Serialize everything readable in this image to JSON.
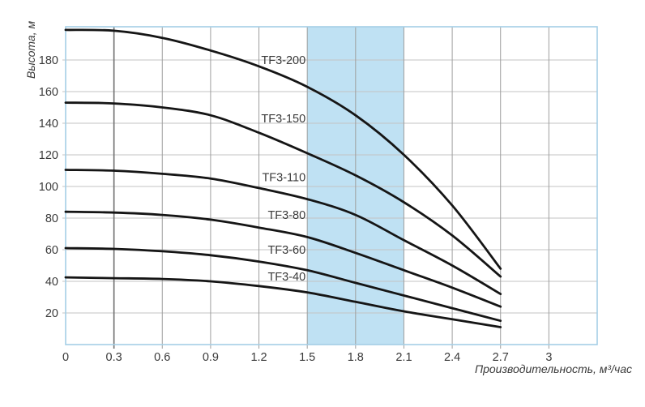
{
  "chart_data": {
    "type": "line",
    "title": "",
    "xlabel": "Производительность, м³/час",
    "ylabel": "Высота, м",
    "xlim": [
      0,
      3.3
    ],
    "ylim": [
      0,
      201
    ],
    "grid": true,
    "legend_position": "inline-labels",
    "x_ticks": [
      0,
      0.3,
      0.6,
      0.9,
      1.2,
      1.5,
      1.8,
      2.1,
      2.4,
      2.7,
      3
    ],
    "x_tick_labels": [
      "0",
      "0.3",
      "0.6",
      "0.9",
      "1.2",
      "1.5",
      "1.8",
      "2.1",
      "2.4",
      "2.7",
      "3"
    ],
    "y_ticks": [
      20,
      40,
      60,
      80,
      100,
      120,
      140,
      160,
      180
    ],
    "y_tick_labels": [
      "20",
      "40",
      "60",
      "80",
      "100",
      "120",
      "140",
      "160",
      "180"
    ],
    "emphasized_x_line": 0.3,
    "highlight_band": {
      "from": 1.5,
      "to": 2.1
    },
    "x": [
      0,
      0.3,
      0.6,
      0.9,
      1.2,
      1.5,
      1.8,
      2.1,
      2.4,
      2.7
    ],
    "series": [
      {
        "name": "TF3-200",
        "values": [
          199,
          198.5,
          194,
          186,
          176,
          163,
          145,
          120,
          88,
          48
        ],
        "label_x": 1.49,
        "label_y": 180
      },
      {
        "name": "TF3-150",
        "values": [
          153,
          152.5,
          150,
          145,
          134,
          121,
          107,
          90,
          69,
          43
        ],
        "label_x": 1.49,
        "label_y": 143
      },
      {
        "name": "TF3-110",
        "values": [
          110.5,
          110,
          108,
          105,
          99,
          92,
          82,
          66,
          50,
          32
        ],
        "label_x": 1.49,
        "label_y": 106
      },
      {
        "name": "TF3-80",
        "values": [
          84,
          83.5,
          82,
          79,
          74,
          68,
          58,
          47,
          36,
          24
        ],
        "label_x": 1.49,
        "label_y": 82
      },
      {
        "name": "TF3-60",
        "values": [
          61,
          60.5,
          59,
          56.5,
          52.5,
          47,
          39,
          31,
          23,
          15
        ],
        "label_x": 1.49,
        "label_y": 60
      },
      {
        "name": "TF3-40",
        "values": [
          42.5,
          42,
          41.5,
          40,
          37,
          33,
          27,
          21,
          16,
          11
        ],
        "label_x": 1.49,
        "label_y": 43
      }
    ],
    "colors": {
      "band": "#bfe1f3",
      "plot_border": "#a5cfe6",
      "grid_horizontal": "#c3c3c3",
      "grid_vertical": "#9e9e9e",
      "grid_vertical_emphasis": "#6f6f6f",
      "curve": "#151515",
      "text": "#3a3a3a"
    }
  }
}
